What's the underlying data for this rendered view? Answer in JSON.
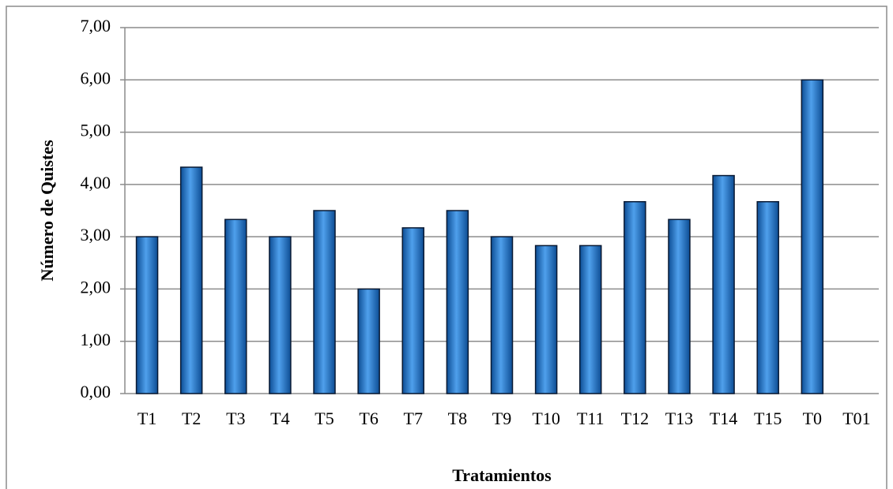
{
  "chart_data": {
    "type": "bar",
    "y_label": "Número de Quistes",
    "x_label": "Tratamientos",
    "categories": [
      "T1",
      "T2",
      "T3",
      "T4",
      "T5",
      "T6",
      "T7",
      "T8",
      "T9",
      "T10",
      "T11",
      "T12",
      "T13",
      "T14",
      "T15",
      "T0",
      "T01"
    ],
    "values": [
      3.0,
      4.33,
      3.33,
      3.0,
      3.5,
      2.0,
      3.17,
      3.5,
      3.0,
      2.83,
      2.83,
      3.67,
      3.33,
      4.17,
      3.67,
      6.0,
      0
    ],
    "color": "#1f6fc4",
    "ylim": [
      0,
      7
    ],
    "yticks": [
      {
        "value": 0,
        "label": "0,00"
      },
      {
        "value": 1,
        "label": "1,00"
      },
      {
        "value": 2,
        "label": "2,00"
      },
      {
        "value": 3,
        "label": "3,00"
      },
      {
        "value": 4,
        "label": "4,00"
      },
      {
        "value": 5,
        "label": "5,00"
      },
      {
        "value": 6,
        "label": "6,00"
      },
      {
        "value": 7,
        "label": "7,00"
      }
    ],
    "grid": true
  }
}
